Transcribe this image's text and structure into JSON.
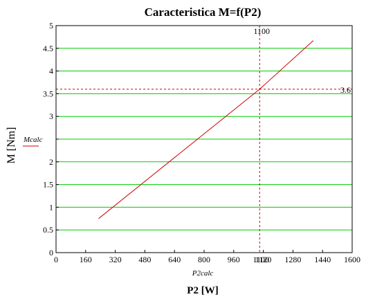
{
  "chart_data": {
    "type": "line",
    "title": "Caracteristica M=f(P2)",
    "xlabel": "P2 [W]",
    "x_sublabel": "P2calc",
    "ylabel": "M [Nm]",
    "legend_entry": "Mcalc",
    "xlim": [
      0,
      1600
    ],
    "ylim": [
      0,
      5
    ],
    "x_ticks": [
      0,
      160,
      320,
      480,
      640,
      800,
      960,
      1120,
      1280,
      1440,
      1600
    ],
    "y_ticks": [
      0,
      0.5,
      1,
      1.5,
      2,
      2.5,
      3,
      3.5,
      4,
      4.5,
      5
    ],
    "y_tick_labels": [
      "0",
      "0.5",
      "1",
      "1.5",
      "2",
      "",
      "3",
      "3.5",
      "4",
      "4.5",
      "5"
    ],
    "grid": "horizontal",
    "series": [
      {
        "name": "Mcalc",
        "color": "#cc0000",
        "x": [
          230,
          1100,
          1390
        ],
        "y": [
          0.75,
          3.6,
          4.67
        ]
      }
    ],
    "markers": {
      "vertical": {
        "x": 1100,
        "label": "1100",
        "color": "#cc0000"
      },
      "horizontal": {
        "y": 3.6,
        "label": "3.6",
        "color": "#cc0000"
      }
    },
    "overlap_labels": [
      {
        "text": "1100",
        "near_x_tick": 1120
      }
    ],
    "grid_color": "#00cc00"
  }
}
